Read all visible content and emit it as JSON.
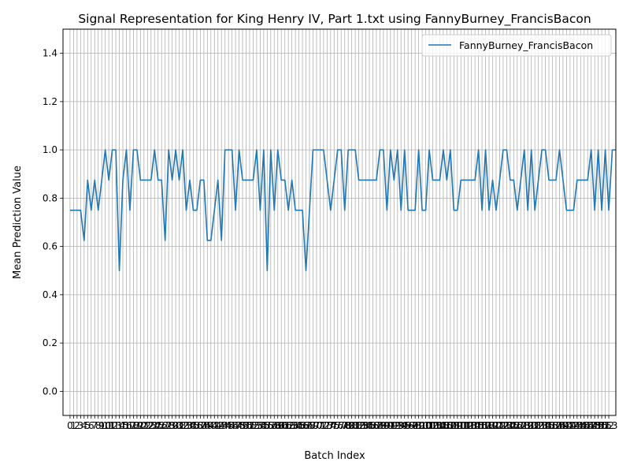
{
  "chart_data": {
    "type": "line",
    "title": "Signal Representation for King Henry IV, Part 1.txt using FannyBurney_FrancisBacon",
    "xlabel": "Batch Index",
    "ylabel": "Mean Prediction Value",
    "ylim": [
      -0.1,
      1.5
    ],
    "yticks": [
      0.0,
      0.2,
      0.4,
      0.6,
      0.8,
      1.0,
      1.2,
      1.4
    ],
    "xlim": [
      -2,
      155
    ],
    "x_start": 0,
    "x_end": 153,
    "x_tick_labels_visible": [
      "0",
      "1",
      "2",
      "3",
      "4",
      "5",
      "6",
      "7",
      "8",
      "9",
      "10",
      "...",
      "153"
    ],
    "grid": true,
    "legend_position": "top-right",
    "series_color": "#1f77b4",
    "series": [
      {
        "name": "FannyBurney_FrancisBacon",
        "values": [
          0.75,
          0.75,
          0.75,
          0.75,
          0.625,
          0.875,
          0.75,
          0.875,
          0.75,
          0.875,
          1.0,
          0.875,
          1.0,
          1.0,
          0.5,
          0.875,
          1.0,
          0.75,
          1.0,
          1.0,
          0.875,
          0.875,
          0.875,
          0.875,
          1.0,
          0.875,
          0.875,
          0.625,
          1.0,
          0.875,
          1.0,
          0.875,
          1.0,
          0.75,
          0.875,
          0.75,
          0.75,
          0.875,
          0.875,
          0.625,
          0.625,
          0.75,
          0.875,
          0.625,
          1.0,
          1.0,
          1.0,
          0.75,
          1.0,
          0.875,
          0.875,
          0.875,
          0.875,
          1.0,
          0.75,
          1.0,
          0.5,
          1.0,
          0.75,
          1.0,
          0.875,
          0.875,
          0.75,
          0.875,
          0.75,
          0.75,
          0.75,
          0.5,
          0.75,
          1.0,
          1.0,
          1.0,
          1.0,
          0.875,
          0.75,
          0.875,
          1.0,
          1.0,
          0.75,
          1.0,
          1.0,
          1.0,
          0.875,
          0.875,
          0.875,
          0.875,
          0.875,
          0.875,
          1.0,
          1.0,
          0.75,
          1.0,
          0.875,
          1.0,
          0.75,
          1.0,
          0.75,
          0.75,
          0.75,
          1.0,
          0.75,
          0.75,
          1.0,
          0.875,
          0.875,
          0.875,
          1.0,
          0.875,
          1.0,
          0.75,
          0.75,
          0.875,
          0.875,
          0.875,
          0.875,
          0.875,
          1.0,
          0.75,
          1.0,
          0.75,
          0.875,
          0.75,
          0.875,
          1.0,
          1.0,
          0.875,
          0.875,
          0.75,
          0.875,
          1.0,
          0.75,
          1.0,
          0.75,
          0.875,
          1.0,
          1.0,
          0.875,
          0.875,
          0.875,
          1.0,
          0.875,
          0.75,
          0.75,
          0.75,
          0.875,
          0.875,
          0.875,
          0.875,
          1.0,
          0.75,
          1.0,
          0.75,
          1.0,
          0.75,
          1.0,
          1.0
        ]
      }
    ]
  }
}
